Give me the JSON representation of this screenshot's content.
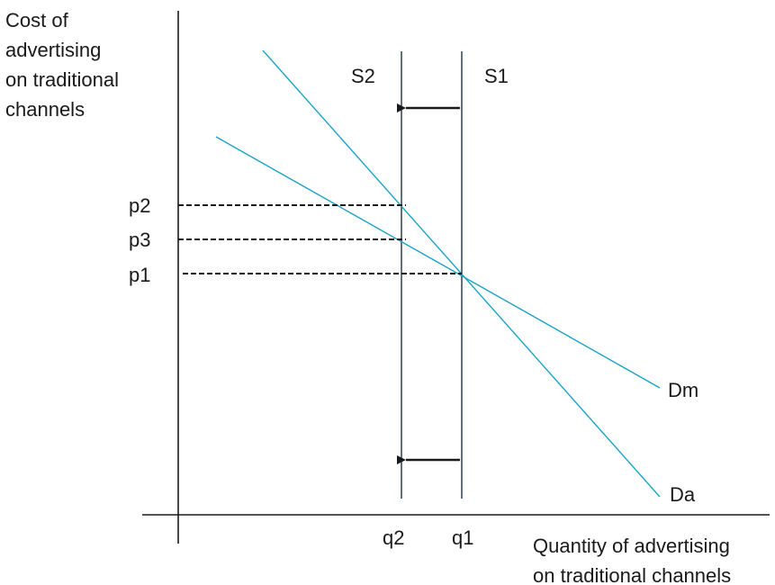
{
  "diagram": {
    "y_axis_label": [
      "Cost of",
      "advertising",
      "on traditional",
      "channels"
    ],
    "x_axis_label": [
      "Quantity of advertising",
      "on traditional channels"
    ],
    "supply": [
      {
        "name": "S2"
      },
      {
        "name": "S1"
      }
    ],
    "demand": [
      {
        "name": "Dm"
      },
      {
        "name": "Da"
      }
    ],
    "prices": [
      "p2",
      "p3",
      "p1"
    ],
    "quantities": [
      "q2",
      "q1"
    ],
    "colors": {
      "demand_line": "#1ba3c6",
      "supply_line": "#1f3344",
      "axis": "#1a1a1a"
    }
  }
}
